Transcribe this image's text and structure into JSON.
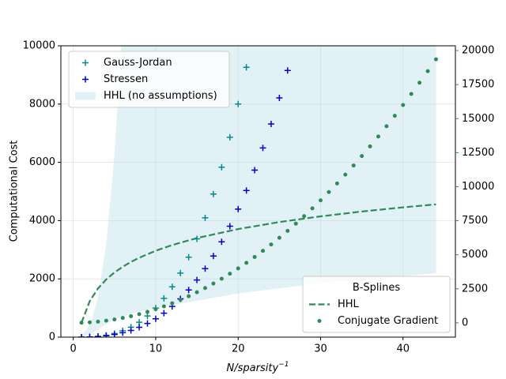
{
  "chart_data": {
    "type": "combo",
    "x_label": {
      "text": "N/sparsity",
      "superscript": "−1"
    },
    "y_label": "Computational Cost",
    "xlim": [
      -1.5,
      46.35
    ],
    "xticks": [
      0,
      10,
      20,
      30,
      40
    ],
    "ylim": [
      0,
      10000
    ],
    "yticks": [
      0,
      2000,
      4000,
      6000,
      8000,
      10000
    ],
    "y2lim": [
      -1050,
      20350
    ],
    "y2ticks": [
      0,
      2500,
      5000,
      7500,
      10000,
      12500,
      15000,
      17500,
      20000
    ],
    "y2_color": "#2e8b57",
    "grid": true,
    "legends": [
      {
        "loc": "upper left"
      },
      {
        "loc": "lower right",
        "title": "B-Splines"
      }
    ],
    "series": [
      {
        "name": "Gauss-Jordan",
        "kind": "scatter",
        "marker": "+",
        "color": "#008b8b",
        "legend": 0,
        "x": [
          1,
          2,
          3,
          4,
          5,
          6,
          7,
          8,
          9,
          10,
          11,
          12,
          13,
          14,
          15,
          16,
          17,
          18,
          19,
          20,
          21
        ],
        "values": [
          1,
          8,
          27,
          64,
          125,
          216,
          343,
          512,
          729,
          1000,
          1331,
          1728,
          2197,
          2744,
          3375,
          4096,
          4913,
          5832,
          6859,
          8000,
          9261
        ]
      },
      {
        "name": "Stressen",
        "kind": "scatter",
        "marker": "+",
        "color": "#0000cd",
        "legend": 0,
        "x": [
          1,
          2,
          3,
          4,
          5,
          6,
          7,
          8,
          9,
          10,
          11,
          12,
          13,
          14,
          15,
          16,
          17,
          18,
          19,
          20,
          21,
          22,
          23,
          24,
          25,
          26
        ],
        "values": [
          1,
          7,
          22,
          49,
          91,
          151,
          232,
          338,
          470,
          631,
          824,
          1052,
          1316,
          1619,
          1963,
          2352,
          2786,
          3271,
          3807,
          4393,
          5035,
          5733,
          6495,
          7317,
          8210,
          9153
        ]
      },
      {
        "name": "HHL (no assumptions)",
        "kind": "fill",
        "color": "#add8e6",
        "legend": 0,
        "x": [
          1,
          2,
          3,
          4,
          5,
          6,
          7,
          8,
          10,
          15,
          20,
          30,
          44
        ],
        "upper": [
          50,
          400,
          1350,
          3200,
          6250,
          10800,
          17150,
          25600,
          50000,
          168750,
          400000,
          1350000,
          4259200
        ],
        "lower": [
          0,
          100,
          250,
          450,
          600,
          700,
          800,
          880,
          1000,
          1250,
          1500,
          1850,
          2200
        ]
      },
      {
        "name": "HHL",
        "kind": "line",
        "dash": true,
        "color": "#2e8b57",
        "axis": "y2",
        "legend": 1,
        "x": [
          1,
          2,
          3,
          4,
          5,
          6,
          7,
          8,
          10,
          12,
          15,
          20,
          25,
          30,
          35,
          40,
          44
        ],
        "values": [
          0,
          1594,
          2527,
          3188,
          3702,
          4121,
          4476,
          4783,
          5296,
          5715,
          6228,
          6890,
          7404,
          7823,
          8177,
          8484,
          8703
        ]
      },
      {
        "name": "Conjugate Gradient",
        "kind": "scatter",
        "marker": "o",
        "color": "#2e8b57",
        "axis": "y2",
        "legend": 1,
        "x": [
          1,
          2,
          3,
          4,
          5,
          6,
          7,
          8,
          9,
          10,
          11,
          12,
          13,
          14,
          15,
          16,
          17,
          18,
          19,
          20,
          21,
          22,
          23,
          24,
          25,
          26,
          27,
          28,
          29,
          30,
          31,
          32,
          33,
          34,
          35,
          36,
          37,
          38,
          39,
          40,
          41,
          42,
          43,
          44
        ],
        "values": [
          10,
          40,
          90,
          160,
          250,
          360,
          490,
          640,
          810,
          1000,
          1210,
          1440,
          1690,
          1960,
          2250,
          2560,
          2890,
          3240,
          3610,
          4000,
          4410,
          4840,
          5290,
          5760,
          6250,
          6760,
          7290,
          7840,
          8410,
          9000,
          9610,
          10240,
          10890,
          11560,
          12250,
          12960,
          13690,
          14440,
          15210,
          16000,
          16810,
          17640,
          18490,
          19360
        ]
      }
    ]
  }
}
